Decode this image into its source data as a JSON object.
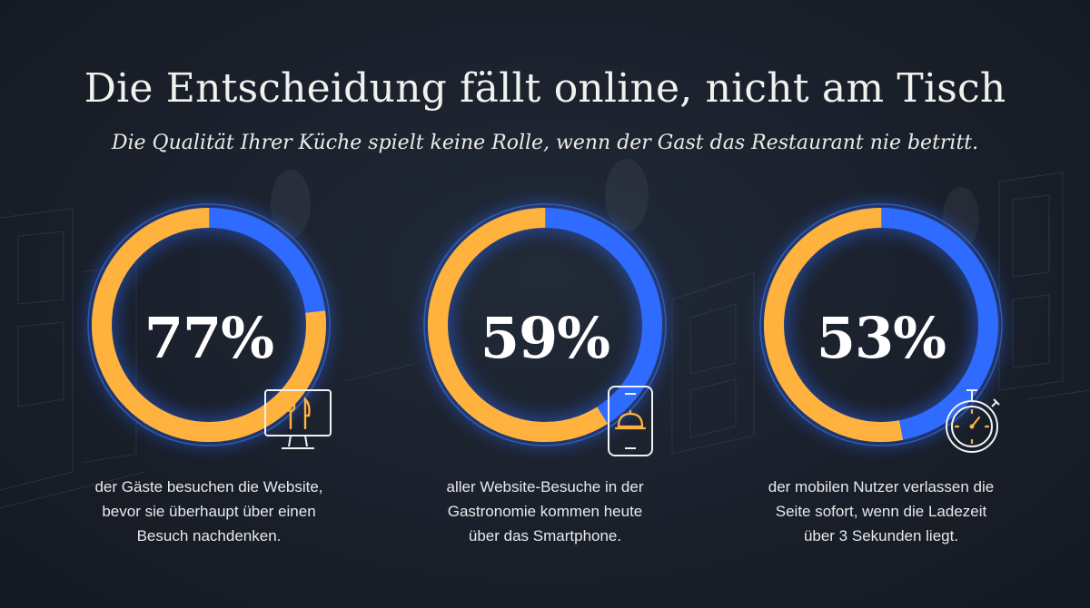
{
  "title": "Die Entscheidung fällt online, nicht am Tisch",
  "subtitle": "Die Qualität Ihrer Küche spielt keine Rolle, wenn der Gast das Restaurant nie betritt.",
  "colors": {
    "highlight": "#ffb23d",
    "remainder": "#2f6bff",
    "background": "#1a202b"
  },
  "chart_data": [
    {
      "type": "pie",
      "value": 77,
      "label": "77%",
      "description": [
        "der Gäste besuchen die Website,",
        "bevor sie überhaupt über einen",
        "Besuch nachdenken."
      ],
      "icon": "monitor-fork-knife-icon"
    },
    {
      "type": "pie",
      "value": 59,
      "label": "59%",
      "description": [
        "aller Website-Besuche in der",
        "Gastronomie kommen heute",
        "über das Smartphone."
      ],
      "icon": "smartphone-cloche-icon"
    },
    {
      "type": "pie",
      "value": 53,
      "label": "53%",
      "description": [
        "der mobilen Nutzer verlassen die",
        "Seite sofort, wenn die Ladezeit",
        "über 3 Sekunden liegt."
      ],
      "icon": "stopwatch-icon"
    }
  ]
}
